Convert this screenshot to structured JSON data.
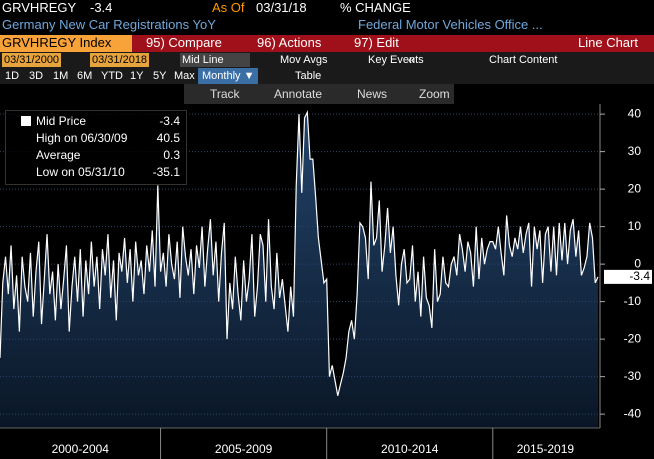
{
  "header": {
    "ticker": "GRVHREGY",
    "as_of_label": "As Of",
    "as_of": "03/31/18",
    "mode": "% CHANGE",
    "description": "Germany New Car Registrations YoY",
    "source": "Federal Motor Vehicles Office ..."
  },
  "menu": {
    "security": "GRVHREGY Index",
    "items": [
      "95) Compare",
      "96) Actions",
      "97) Edit"
    ],
    "view": "Line Chart"
  },
  "controls": {
    "start": "03/31/2000",
    "end": "03/31/2018",
    "line_mode": "Mid Line",
    "mov_avgs": "Mov Avgs",
    "key_events": "Key Events",
    "collapse": "«",
    "chart_content": "Chart Content",
    "ranges": [
      "1D",
      "3D",
      "1M",
      "6M",
      "YTD",
      "1Y",
      "5Y",
      "Max"
    ],
    "frequency": "Monthly ▼",
    "table": "Table"
  },
  "toolbar": [
    "Track",
    "Annotate",
    "News",
    "Zoom"
  ],
  "legend": [
    {
      "label": "High on 06/30/09",
      "value": "40.5"
    },
    {
      "label": "Average",
      "value": "0.3"
    },
    {
      "label": "Low on 05/31/10",
      "value": "-35.1"
    }
  ],
  "chart_data": {
    "type": "area",
    "period_labels": [
      "2000-2004",
      "2005-2009",
      "2010-2014",
      "2015-2019"
    ],
    "series": [
      {
        "name": "Mid Price",
        "color": "#ffffff",
        "values": [
          -25,
          -5,
          2,
          -8,
          5,
          -12,
          -3,
          -18,
          2,
          -6,
          -10,
          3,
          -14,
          -2,
          6,
          -16,
          -4,
          8,
          -8,
          -2,
          -15,
          0,
          -12,
          -4,
          5,
          -18,
          -6,
          2,
          -10,
          4,
          -14,
          1,
          -8,
          6,
          -6,
          2,
          -12,
          4,
          -3,
          8,
          -9,
          1,
          -15,
          3,
          -2,
          7,
          -5,
          4,
          -10,
          6,
          -3,
          1,
          -8,
          5,
          -2,
          9,
          -6,
          21,
          -2,
          3,
          -6,
          8,
          0,
          -4,
          6,
          -9,
          10,
          2,
          -3,
          4,
          -8,
          5,
          -1,
          10,
          -6,
          4,
          12,
          -3,
          6,
          -10,
          3,
          11,
          -20,
          -5,
          -12,
          2,
          -8,
          -15,
          1,
          -10,
          -4,
          8,
          -14,
          -6,
          8,
          5,
          -10,
          12,
          -6,
          -12,
          3,
          -9,
          -4,
          -11,
          -18,
          -6,
          -14,
          21,
          40,
          19,
          39,
          40.5,
          28,
          28,
          18,
          7,
          1,
          -5,
          -4,
          -30,
          -27,
          -31,
          -35.1,
          -32,
          -29,
          -25,
          -18,
          -15,
          -20,
          -8,
          11,
          10,
          7,
          -4,
          22,
          5,
          7,
          17,
          -2,
          5,
          15,
          3,
          10,
          -3,
          -11,
          0,
          4,
          -5,
          -4,
          5,
          -10,
          -2,
          -14,
          2,
          -9,
          -11,
          -17,
          4,
          -10,
          -8,
          2,
          -5,
          -6,
          0,
          2,
          -3,
          8,
          4,
          -2,
          6,
          3,
          -6,
          10,
          -4,
          7,
          0,
          4,
          6,
          6,
          4,
          10,
          3,
          -3,
          13,
          5,
          2,
          7,
          4,
          10,
          3,
          8,
          11,
          -6,
          10,
          4,
          9,
          -5,
          8,
          10,
          -2,
          10,
          -3,
          11,
          1,
          11,
          0,
          9,
          12,
          2,
          9,
          -3,
          -1,
          2,
          11,
          7,
          -5,
          -3.4
        ]
      }
    ],
    "ylim": [
      -43.7,
      42.7
    ],
    "yticks": [
      -40,
      -30,
      -20,
      -10,
      0,
      10,
      20,
      30,
      40
    ],
    "grid": true
  }
}
